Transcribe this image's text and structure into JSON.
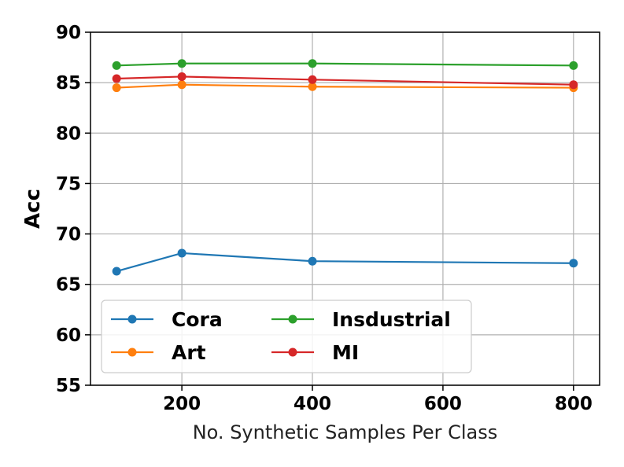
{
  "chart_data": {
    "type": "line",
    "title": "",
    "xlabel": "No. Synthetic Samples Per Class",
    "ylabel": "Acc",
    "xlim": [
      60,
      840
    ],
    "ylim": [
      55,
      90
    ],
    "xticks": [
      200,
      400,
      600,
      800
    ],
    "yticks": [
      55,
      60,
      65,
      70,
      75,
      80,
      85,
      90
    ],
    "grid": true,
    "legend_position": "lower-left",
    "legend_columns": 2,
    "x": [
      100,
      200,
      400,
      800
    ],
    "series": [
      {
        "name": "Cora",
        "color": "#1f77b4",
        "values": [
          66.3,
          68.1,
          67.3,
          67.1
        ]
      },
      {
        "name": "Art",
        "color": "#ff7f0e",
        "values": [
          84.5,
          84.8,
          84.6,
          84.5
        ]
      },
      {
        "name": "Insdustrial",
        "color": "#2ca02c",
        "values": [
          86.7,
          86.9,
          86.9,
          86.7
        ]
      },
      {
        "name": "MI",
        "color": "#d62728",
        "values": [
          85.4,
          85.6,
          85.3,
          84.8
        ]
      }
    ]
  }
}
